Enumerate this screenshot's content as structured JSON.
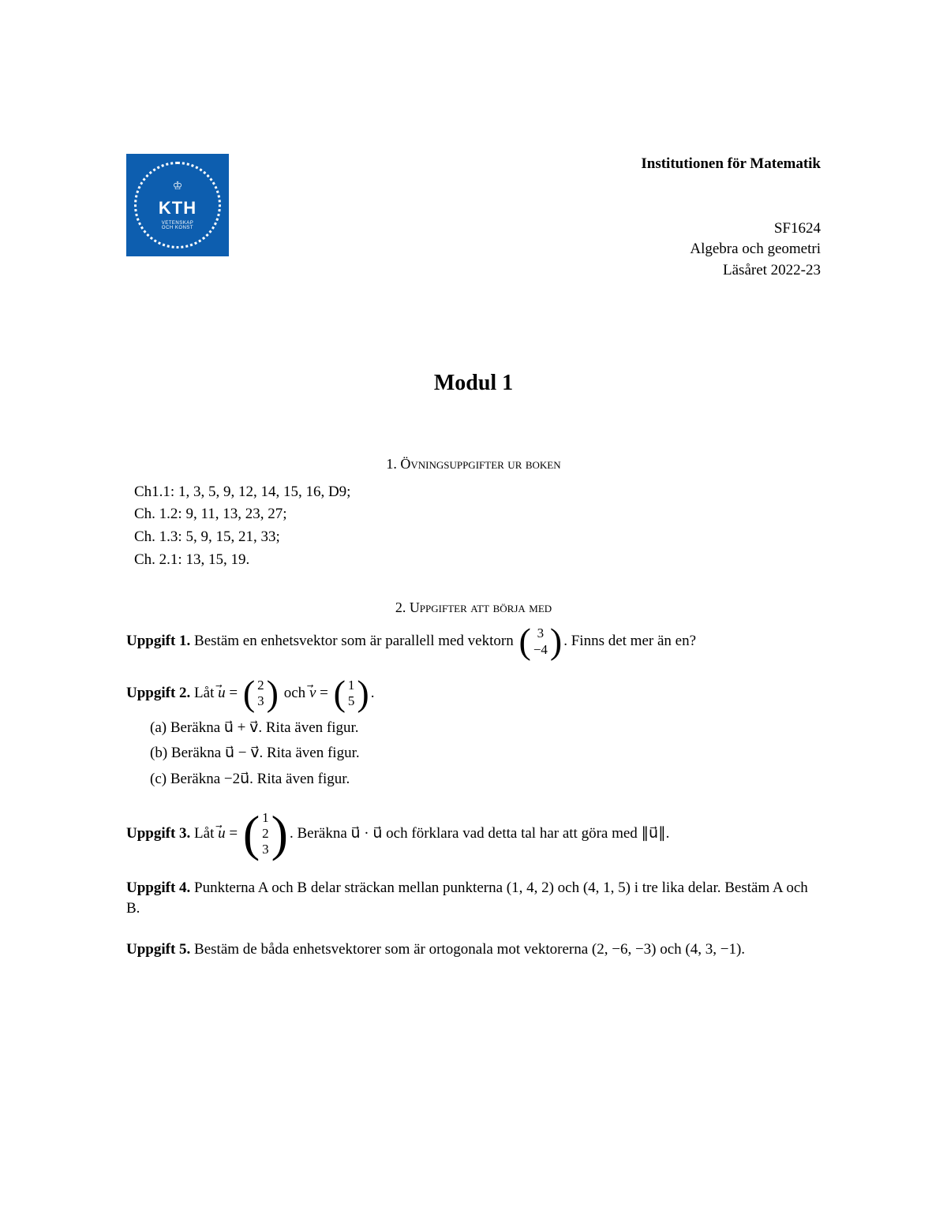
{
  "logo": {
    "bg_color": "#0d5eaf",
    "text_main": "KTH",
    "text_sub1": "VETENSKAP",
    "text_sub2": "OCH KONST",
    "crown_glyph": "♔"
  },
  "header": {
    "institution": "Institutionen för Matematik",
    "course_code": "SF1624",
    "course_name": "Algebra och geometri",
    "academic_year": "Läsåret 2022-23"
  },
  "module_title": "Modul 1",
  "section1_heading": "1.  Övningsuppgifter ur boken",
  "book_exercises": {
    "line1": "Ch1.1: 1, 3, 5, 9, 12, 14, 15, 16, D9;",
    "line2": "Ch. 1.2: 9, 11, 13, 23, 27;",
    "line3": "Ch. 1.3: 5, 9, 15, 21, 33;",
    "line4": "Ch. 2.1: 13, 15, 19."
  },
  "section2_heading": "2.  Uppgifter att börja med",
  "task1": {
    "label": "Uppgift 1.",
    "text_before": " Bestäm en enhetsvektor som är parallell med vektorn ",
    "vec_top": "3",
    "vec_bot": "−4",
    "text_after": ". Finns det mer än en?"
  },
  "task2": {
    "label": "Uppgift 2.",
    "text1": " Låt ",
    "u_top": "2",
    "u_bot": "3",
    "text2": " och ",
    "v_top": "1",
    "v_bot": "5",
    "text3": ".",
    "sub_a": "(a) Beräkna u⃗ + v⃗. Rita även figur.",
    "sub_b": "(b) Beräkna u⃗ − v⃗. Rita även figur.",
    "sub_c": "(c) Beräkna −2u⃗. Rita även figur."
  },
  "task3": {
    "label": "Uppgift 3.",
    "text1": " Låt ",
    "u_top": "1",
    "u_mid": "2",
    "u_bot": "3",
    "text2": ". Beräkna u⃗ · u⃗ och förklara vad detta tal har att göra med ∥u⃗∥."
  },
  "task4": {
    "label": "Uppgift 4.",
    "text": " Punkterna A och B delar sträckan mellan punkterna (1, 4, 2) och (4, 1, 5) i tre lika delar. Bestäm A och B."
  },
  "task5": {
    "label": "Uppgift 5.",
    "text": " Bestäm de båda enhetsvektorer som är ortogonala mot vektorerna (2, −6, −3) och (4, 3, −1)."
  }
}
